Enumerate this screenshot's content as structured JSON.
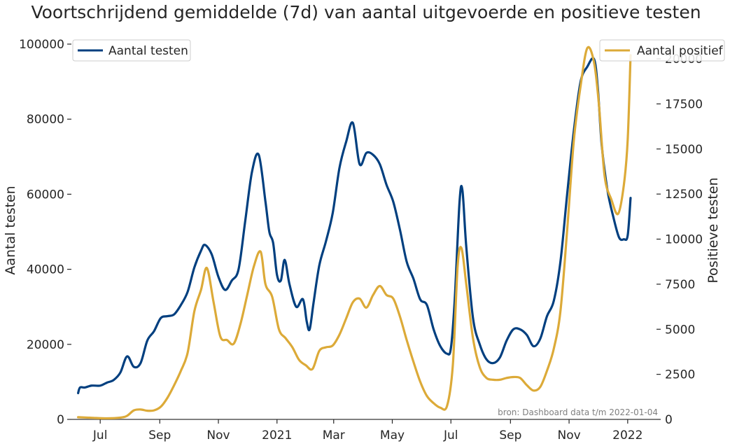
{
  "chart_data": {
    "type": "line",
    "title": "Voortschrijdend gemiddelde (7d) van aantal uitgevoerde en positieve testen",
    "xlabel": "",
    "ylabel_left": "Aantal testen",
    "ylabel_right": "Positieve testen",
    "source_note": "bron: Dashboard data t/m 2022-01-04",
    "x_range": [
      "2020-06-01",
      "2022-01-31"
    ],
    "y_left_range": [
      0,
      100000
    ],
    "y_right_range": [
      0,
      21400
    ],
    "x_ticks": [
      {
        "date": "2020-07-01",
        "label": "Jul"
      },
      {
        "date": "2020-09-01",
        "label": "Sep"
      },
      {
        "date": "2020-11-01",
        "label": "Nov"
      },
      {
        "date": "2021-01-01",
        "label": "2021"
      },
      {
        "date": "2021-03-01",
        "label": "Mar"
      },
      {
        "date": "2021-05-01",
        "label": "May"
      },
      {
        "date": "2021-07-01",
        "label": "Jul"
      },
      {
        "date": "2021-09-01",
        "label": "Sep"
      },
      {
        "date": "2021-11-01",
        "label": "Nov"
      },
      {
        "date": "2022-01-01",
        "label": "2022"
      }
    ],
    "y_left_ticks": [
      0,
      20000,
      40000,
      60000,
      80000,
      100000
    ],
    "y_right_ticks": [
      0,
      2500,
      5000,
      7500,
      10000,
      12500,
      15000,
      17500,
      20000
    ],
    "grid": false,
    "legend": [
      {
        "series": "tests",
        "placement": "top-left"
      },
      {
        "series": "positives",
        "placement": "top-right"
      }
    ],
    "series": [
      {
        "key": "tests",
        "name": "Aantal testen",
        "axis": "left",
        "color": "#003f7f",
        "points": [
          [
            "2020-06-08",
            7000
          ],
          [
            "2020-06-10",
            8500
          ],
          [
            "2020-06-15",
            8500
          ],
          [
            "2020-06-22",
            9000
          ],
          [
            "2020-07-01",
            9000
          ],
          [
            "2020-07-08",
            9800
          ],
          [
            "2020-07-15",
            10500
          ],
          [
            "2020-07-22",
            12500
          ],
          [
            "2020-07-29",
            16800
          ],
          [
            "2020-08-05",
            14000
          ],
          [
            "2020-08-12",
            15000
          ],
          [
            "2020-08-19",
            21000
          ],
          [
            "2020-08-26",
            23500
          ],
          [
            "2020-09-02",
            27000
          ],
          [
            "2020-09-09",
            27500
          ],
          [
            "2020-09-16",
            28000
          ],
          [
            "2020-09-23",
            30500
          ],
          [
            "2020-09-30",
            34000
          ],
          [
            "2020-10-07",
            40500
          ],
          [
            "2020-10-14",
            45000
          ],
          [
            "2020-10-18",
            46500
          ],
          [
            "2020-10-25",
            44000
          ],
          [
            "2020-11-01",
            38000
          ],
          [
            "2020-11-08",
            34500
          ],
          [
            "2020-11-15",
            37000
          ],
          [
            "2020-11-22",
            40000
          ],
          [
            "2020-11-29",
            53000
          ],
          [
            "2020-12-06",
            66000
          ],
          [
            "2020-12-13",
            70500
          ],
          [
            "2020-12-20",
            58000
          ],
          [
            "2020-12-24",
            50000
          ],
          [
            "2020-12-28",
            47000
          ],
          [
            "2021-01-01",
            38500
          ],
          [
            "2021-01-05",
            37000
          ],
          [
            "2021-01-09",
            42500
          ],
          [
            "2021-01-14",
            36000
          ],
          [
            "2021-01-21",
            30000
          ],
          [
            "2021-01-28",
            32000
          ],
          [
            "2021-02-01",
            26000
          ],
          [
            "2021-02-04",
            24000
          ],
          [
            "2021-02-08",
            31000
          ],
          [
            "2021-02-14",
            41000
          ],
          [
            "2021-02-21",
            47500
          ],
          [
            "2021-02-28",
            55000
          ],
          [
            "2021-03-07",
            67000
          ],
          [
            "2021-03-14",
            74000
          ],
          [
            "2021-03-21",
            79000
          ],
          [
            "2021-03-28",
            68000
          ],
          [
            "2021-04-04",
            71000
          ],
          [
            "2021-04-11",
            70500
          ],
          [
            "2021-04-18",
            68000
          ],
          [
            "2021-04-25",
            62500
          ],
          [
            "2021-05-02",
            58000
          ],
          [
            "2021-05-09",
            50500
          ],
          [
            "2021-05-16",
            42000
          ],
          [
            "2021-05-23",
            37500
          ],
          [
            "2021-05-30",
            32000
          ],
          [
            "2021-06-06",
            30500
          ],
          [
            "2021-06-13",
            24000
          ],
          [
            "2021-06-20",
            19500
          ],
          [
            "2021-06-27",
            17500
          ],
          [
            "2021-07-01",
            19000
          ],
          [
            "2021-07-05",
            32000
          ],
          [
            "2021-07-10",
            58000
          ],
          [
            "2021-07-13",
            61000
          ],
          [
            "2021-07-17",
            46000
          ],
          [
            "2021-07-24",
            27000
          ],
          [
            "2021-07-31",
            20000
          ],
          [
            "2021-08-07",
            16000
          ],
          [
            "2021-08-14",
            15000
          ],
          [
            "2021-08-21",
            16500
          ],
          [
            "2021-08-28",
            21000
          ],
          [
            "2021-09-04",
            24000
          ],
          [
            "2021-09-11",
            24000
          ],
          [
            "2021-09-18",
            22500
          ],
          [
            "2021-09-25",
            19500
          ],
          [
            "2021-10-02",
            21500
          ],
          [
            "2021-10-09",
            27500
          ],
          [
            "2021-10-16",
            31500
          ],
          [
            "2021-10-23",
            42000
          ],
          [
            "2021-10-30",
            60000
          ],
          [
            "2021-11-06",
            77000
          ],
          [
            "2021-11-13",
            90000
          ],
          [
            "2021-11-20",
            94000
          ],
          [
            "2021-11-27",
            96000
          ],
          [
            "2021-12-01",
            88000
          ],
          [
            "2021-12-05",
            73000
          ],
          [
            "2021-12-11",
            61000
          ],
          [
            "2021-12-17",
            54000
          ],
          [
            "2021-12-23",
            48500
          ],
          [
            "2021-12-28",
            48000
          ],
          [
            "2022-01-01",
            49000
          ],
          [
            "2022-01-04",
            59000
          ]
        ]
      },
      {
        "key": "positives",
        "name": "Aantal positief",
        "axis": "right",
        "color": "#dcaa38",
        "points": [
          [
            "2020-06-08",
            120
          ],
          [
            "2020-06-22",
            90
          ],
          [
            "2020-07-08",
            60
          ],
          [
            "2020-07-22",
            100
          ],
          [
            "2020-07-29",
            200
          ],
          [
            "2020-08-05",
            500
          ],
          [
            "2020-08-12",
            550
          ],
          [
            "2020-08-19",
            480
          ],
          [
            "2020-08-26",
            500
          ],
          [
            "2020-09-02",
            700
          ],
          [
            "2020-09-09",
            1200
          ],
          [
            "2020-09-16",
            1900
          ],
          [
            "2020-09-23",
            2700
          ],
          [
            "2020-09-30",
            3700
          ],
          [
            "2020-10-07",
            6000
          ],
          [
            "2020-10-14",
            7200
          ],
          [
            "2020-10-20",
            8400
          ],
          [
            "2020-10-27",
            6500
          ],
          [
            "2020-11-03",
            4600
          ],
          [
            "2020-11-10",
            4400
          ],
          [
            "2020-11-17",
            4200
          ],
          [
            "2020-11-24",
            5300
          ],
          [
            "2020-12-01",
            6900
          ],
          [
            "2020-12-08",
            8500
          ],
          [
            "2020-12-15",
            9300
          ],
          [
            "2020-12-20",
            7500
          ],
          [
            "2020-12-27",
            6800
          ],
          [
            "2021-01-03",
            5000
          ],
          [
            "2021-01-10",
            4500
          ],
          [
            "2021-01-17",
            4000
          ],
          [
            "2021-01-24",
            3300
          ],
          [
            "2021-01-31",
            3000
          ],
          [
            "2021-02-07",
            2800
          ],
          [
            "2021-02-14",
            3800
          ],
          [
            "2021-02-21",
            4000
          ],
          [
            "2021-02-28",
            4100
          ],
          [
            "2021-03-07",
            4700
          ],
          [
            "2021-03-14",
            5600
          ],
          [
            "2021-03-21",
            6500
          ],
          [
            "2021-03-28",
            6700
          ],
          [
            "2021-04-04",
            6200
          ],
          [
            "2021-04-11",
            6900
          ],
          [
            "2021-04-18",
            7400
          ],
          [
            "2021-04-25",
            6900
          ],
          [
            "2021-05-02",
            6700
          ],
          [
            "2021-05-09",
            5700
          ],
          [
            "2021-05-16",
            4400
          ],
          [
            "2021-05-23",
            3200
          ],
          [
            "2021-05-30",
            2100
          ],
          [
            "2021-06-06",
            1300
          ],
          [
            "2021-06-13",
            900
          ],
          [
            "2021-06-20",
            650
          ],
          [
            "2021-06-27",
            750
          ],
          [
            "2021-07-03",
            3000
          ],
          [
            "2021-07-08",
            8500
          ],
          [
            "2021-07-12",
            9500
          ],
          [
            "2021-07-17",
            7500
          ],
          [
            "2021-07-24",
            4500
          ],
          [
            "2021-07-31",
            2900
          ],
          [
            "2021-08-07",
            2300
          ],
          [
            "2021-08-14",
            2200
          ],
          [
            "2021-08-21",
            2200
          ],
          [
            "2021-08-28",
            2300
          ],
          [
            "2021-09-04",
            2350
          ],
          [
            "2021-09-11",
            2300
          ],
          [
            "2021-09-18",
            1900
          ],
          [
            "2021-09-25",
            1600
          ],
          [
            "2021-10-02",
            1800
          ],
          [
            "2021-10-09",
            2700
          ],
          [
            "2021-10-16",
            3900
          ],
          [
            "2021-10-23",
            6000
          ],
          [
            "2021-10-30",
            10500
          ],
          [
            "2021-11-06",
            15500
          ],
          [
            "2021-11-13",
            18500
          ],
          [
            "2021-11-20",
            20600
          ],
          [
            "2021-11-27",
            19800
          ],
          [
            "2021-12-02",
            17500
          ],
          [
            "2021-12-08",
            13500
          ],
          [
            "2021-12-15",
            12200
          ],
          [
            "2021-12-22",
            11400
          ],
          [
            "2021-12-28",
            13000
          ],
          [
            "2022-01-01",
            15500
          ],
          [
            "2022-01-04",
            20200
          ]
        ]
      }
    ]
  }
}
